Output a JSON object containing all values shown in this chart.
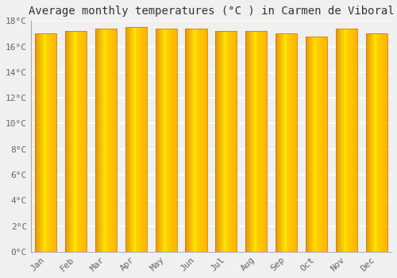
{
  "title": "Average monthly temperatures (°C ) in Carmen de Viboral",
  "months": [
    "Jan",
    "Feb",
    "Mar",
    "Apr",
    "May",
    "Jun",
    "Jul",
    "Aug",
    "Sep",
    "Oct",
    "Nov",
    "Dec"
  ],
  "values": [
    17.0,
    17.2,
    17.4,
    17.5,
    17.4,
    17.4,
    17.2,
    17.2,
    17.0,
    16.8,
    17.4,
    17.0
  ],
  "ylim": [
    0,
    18
  ],
  "yticks": [
    0,
    2,
    4,
    6,
    8,
    10,
    12,
    14,
    16,
    18
  ],
  "ytick_labels": [
    "0°C",
    "2°C",
    "4°C",
    "6°C",
    "8°C",
    "10°C",
    "12°C",
    "14°C",
    "16°C",
    "18°C"
  ],
  "bar_color_left": "#E8920A",
  "bar_color_center": "#FFD000",
  "bar_color_right": "#FFB800",
  "background_color": "#f0f0f0",
  "grid_color": "#ffffff",
  "title_fontsize": 10,
  "tick_fontsize": 8,
  "bar_width": 0.72
}
